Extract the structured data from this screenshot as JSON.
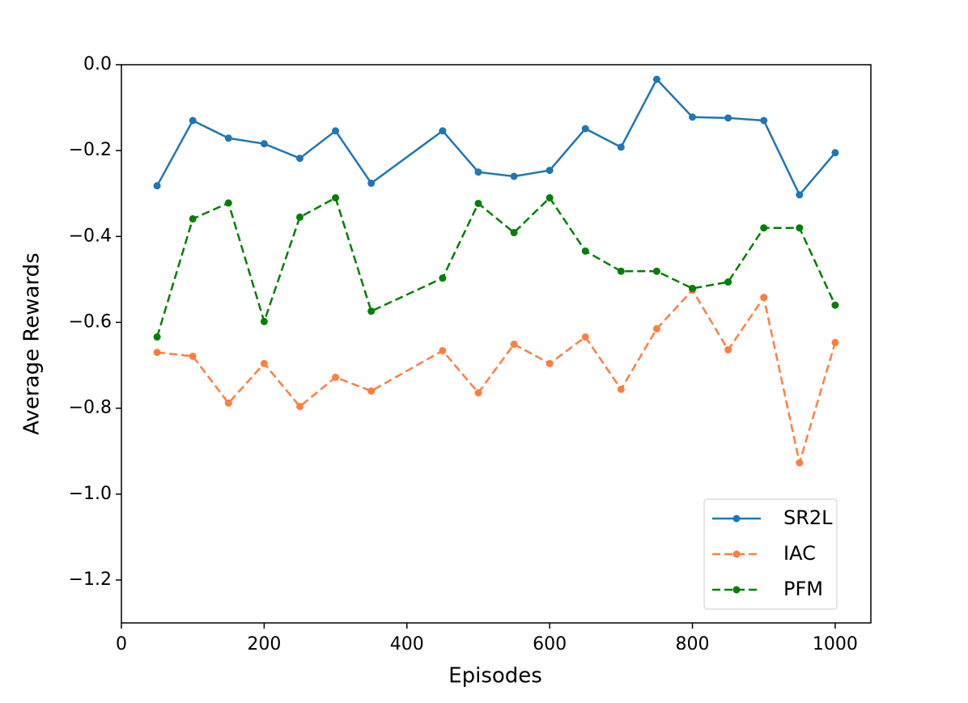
{
  "chart_data": {
    "type": "line",
    "xlabel": "Episodes",
    "ylabel": "Average Rewards",
    "x": [
      50,
      100,
      150,
      200,
      250,
      300,
      350,
      450,
      500,
      550,
      600,
      650,
      700,
      750,
      800,
      850,
      900,
      950,
      1000
    ],
    "series": [
      {
        "name": "SR2L",
        "color": "#1f77b4",
        "linestyle": "solid",
        "values": [
          -0.282,
          -0.13,
          -0.171,
          -0.184,
          -0.218,
          -0.154,
          -0.276,
          -0.154,
          -0.25,
          -0.26,
          -0.246,
          -0.149,
          -0.192,
          -0.034,
          -0.122,
          -0.124,
          -0.13,
          -0.303,
          -0.205
        ]
      },
      {
        "name": "IAC",
        "color": "#ff7f3f",
        "linestyle": "dashed",
        "values": [
          -0.67,
          -0.679,
          -0.788,
          -0.696,
          -0.796,
          -0.728,
          -0.76,
          -0.666,
          -0.764,
          -0.651,
          -0.696,
          -0.634,
          -0.756,
          -0.615,
          -0.525,
          -0.664,
          -0.542,
          -0.927,
          -0.647
        ]
      },
      {
        "name": "PFM",
        "color": "#008000",
        "linestyle": "dashed",
        "values": [
          -0.634,
          -0.359,
          -0.322,
          -0.598,
          -0.355,
          -0.31,
          -0.574,
          -0.497,
          -0.323,
          -0.391,
          -0.31,
          -0.434,
          -0.481,
          -0.481,
          -0.521,
          -0.506,
          -0.38,
          -0.38,
          -0.56
        ]
      }
    ],
    "xlim": [
      0,
      1050
    ],
    "xticks": [
      0,
      200,
      400,
      600,
      800,
      1000
    ],
    "ylim": [
      -1.3,
      0
    ],
    "yticks": [
      {
        "value": -1.2,
        "label": "−1.2"
      },
      {
        "value": -1.0,
        "label": "−1.0"
      },
      {
        "value": -0.8,
        "label": "−0.8"
      },
      {
        "value": -0.6,
        "label": "−0.6"
      },
      {
        "value": -0.4,
        "label": "−0.4"
      },
      {
        "value": -0.2,
        "label": "−0.2"
      },
      {
        "value": 0,
        "label": "0.0"
      }
    ],
    "grid": false,
    "legend": "lower right"
  }
}
